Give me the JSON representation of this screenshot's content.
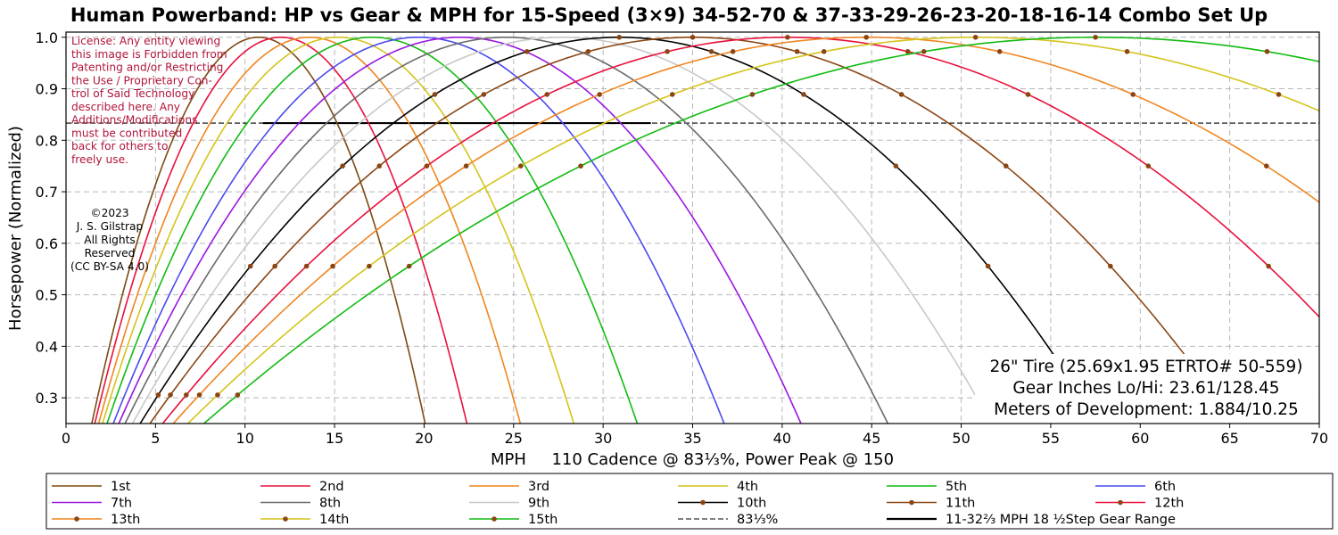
{
  "chart_data": {
    "type": "line",
    "title": "Human Powerband: HP vs Gear & MPH for 15-Speed (3×9) 34-52-70 & 37-33-29-26-23-20-18-16-14 Combo Set Up",
    "xlabel": "MPH     110 Cadence @ 83⅓%, Power Peak @ 150",
    "ylabel": "Horsepower (Normalized)",
    "xlim": [
      0,
      70
    ],
    "ylim": [
      0.25,
      1.01
    ],
    "x_ticks": [
      "0",
      "5",
      "10",
      "15",
      "20",
      "25",
      "30",
      "35",
      "40",
      "45",
      "50",
      "55",
      "60",
      "65",
      "70"
    ],
    "y_ticks": [
      "0.3",
      "0.4",
      "0.5",
      "0.6",
      "0.7",
      "0.8",
      "0.9",
      "1.0"
    ],
    "grid": true,
    "legend_placement": "bottom",
    "curve_model": "hp = 1 - ((v - peak)/peak)^2",
    "series": [
      {
        "name": "1st",
        "peak_mph": 10.75,
        "color": "#7b4a12",
        "markers": false
      },
      {
        "name": "2nd",
        "peak_mph": 12.0,
        "color": "#e8103c",
        "markers": false
      },
      {
        "name": "3rd",
        "peak_mph": 13.6,
        "color": "#f08520",
        "markers": false
      },
      {
        "name": "4th",
        "peak_mph": 15.2,
        "color": "#d4c41a",
        "markers": false
      },
      {
        "name": "5th",
        "peak_mph": 17.1,
        "color": "#12bb12",
        "markers": false
      },
      {
        "name": "6th",
        "peak_mph": 19.7,
        "color": "#4a4aee",
        "markers": false
      },
      {
        "name": "7th",
        "peak_mph": 22.0,
        "color": "#9a18e0",
        "markers": false
      },
      {
        "name": "8th",
        "peak_mph": 24.6,
        "color": "#6a6a6a",
        "markers": false
      },
      {
        "name": "9th",
        "peak_mph": 27.7,
        "color": "#c8c8c8",
        "markers": false
      },
      {
        "name": "10th",
        "peak_mph": 30.9,
        "color": "#000000",
        "markers": true
      },
      {
        "name": "11th",
        "peak_mph": 35.0,
        "color": "#8b4513",
        "markers": true
      },
      {
        "name": "12th",
        "peak_mph": 40.3,
        "color": "#e8103c",
        "markers": true
      },
      {
        "name": "13th",
        "peak_mph": 44.7,
        "color": "#f08520",
        "markers": true
      },
      {
        "name": "14th",
        "peak_mph": 50.8,
        "color": "#d4c41a",
        "markers": true
      },
      {
        "name": "15th",
        "peak_mph": 57.5,
        "color": "#12bb12",
        "markers": true
      }
    ],
    "reference_line": {
      "name": "83⅓%",
      "y": 0.8333,
      "color": "#000000",
      "style": "dashed"
    },
    "range_line": {
      "name": "11-32⅔ MPH  18 ½Step Gear Range",
      "y": 0.8333,
      "x_from": 11,
      "x_to": 32.67,
      "color": "#000000"
    },
    "annotations": {
      "license": [
        "License: Any entity viewing",
        "this image is Forbidden from",
        "Patenting and/or Restricting",
        "the Use / Proprietary Con-",
        "trol of Said Technology",
        "described here. Any",
        "Additions/Modifications",
        "must be contributed",
        "back for others to",
        "freely use."
      ],
      "copyright": [
        "©2023",
        "J. S. Gilstrap",
        "All Rights",
        "Reserved",
        "(CC BY-SA 4.0)"
      ],
      "info": [
        "26\" Tire (25.69x1.95 ETRTO# 50-559)",
        "Gear Inches Lo/Hi: 23.61/128.45",
        "Meters of Development: 1.884/10.25"
      ]
    }
  }
}
